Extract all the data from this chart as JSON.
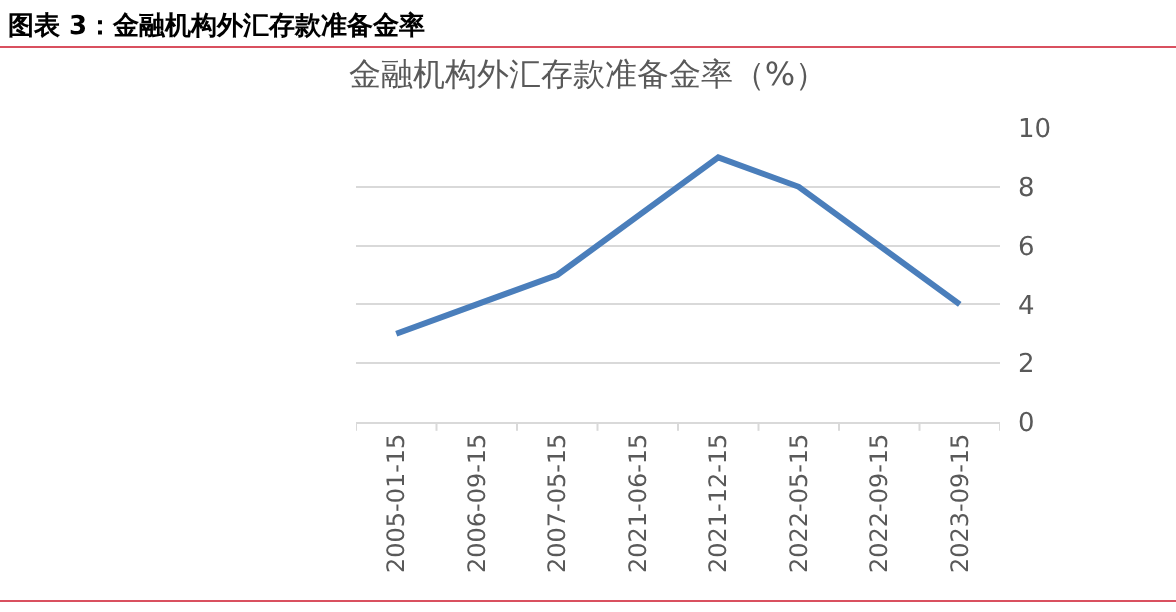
{
  "chart_data": {
    "type": "line",
    "title": "金融机构外汇存款准备金率（%）",
    "annotations": [
      "图表 3：金融机构外汇存款准备金率"
    ],
    "categories": [
      "2005-01-15",
      "2006-09-15",
      "2007-05-15",
      "2021-06-15",
      "2021-12-15",
      "2022-05-15",
      "2022-09-15",
      "2023-09-15"
    ],
    "series": [
      {
        "color": "#4a7ebb",
        "values": [
          3,
          4,
          5,
          7,
          9,
          8,
          6,
          4
        ]
      }
    ],
    "ylim": [
      0,
      10
    ],
    "yticks": [
      0,
      2,
      4,
      6,
      8,
      10
    ],
    "grid": "y",
    "legend": false,
    "marker": "none",
    "line_style": "solid"
  }
}
